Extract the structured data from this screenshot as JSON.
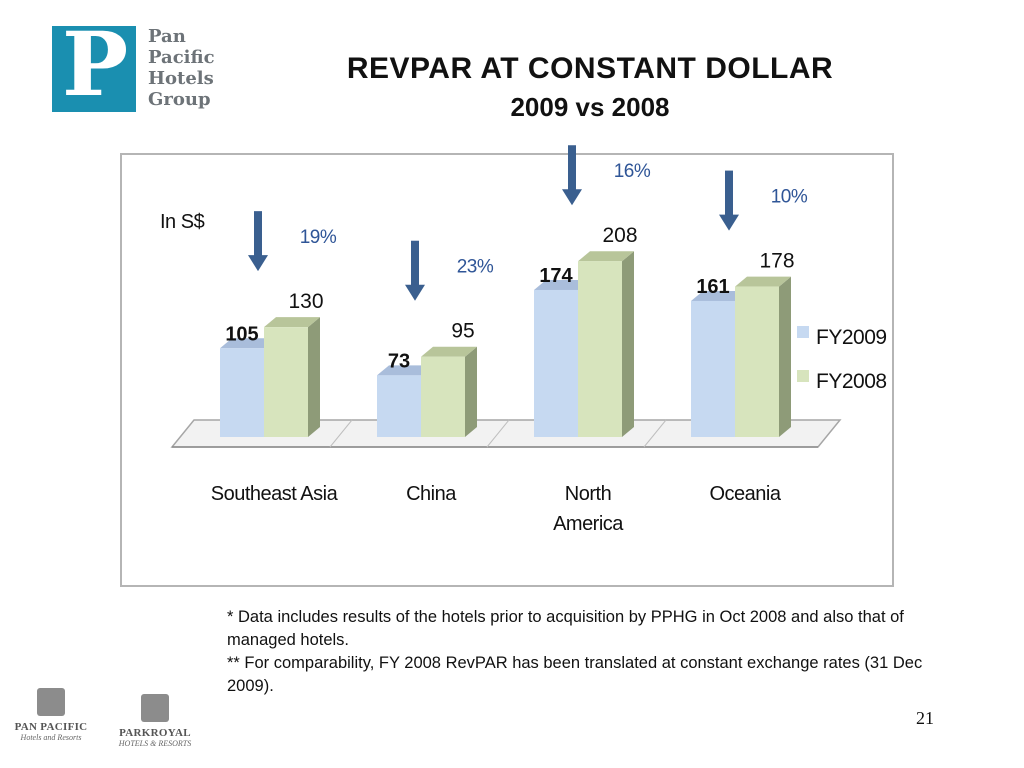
{
  "logo": {
    "letter": "P",
    "lines": [
      "Pan",
      "Pacific",
      "Hotels",
      "Group"
    ]
  },
  "title": {
    "line1": "REVPAR AT CONSTANT DOLLAR",
    "line2": "2009 vs 2008"
  },
  "chart_data": {
    "type": "bar",
    "unit_label": "In S$",
    "categories": [
      "Southeast Asia",
      "China",
      "North America",
      "Oceania"
    ],
    "category_label_lines": [
      [
        "Southeast Asia"
      ],
      [
        "China"
      ],
      [
        "North",
        "America"
      ],
      [
        "Oceania"
      ]
    ],
    "series": [
      {
        "name": "FY2009",
        "values": [
          105,
          73,
          174,
          161
        ],
        "color": "#c6d9f1",
        "side": "#8fa9c9",
        "top": "#a9bddb"
      },
      {
        "name": "FY2008",
        "values": [
          130,
          95,
          208,
          178
        ],
        "color": "#d7e4bd",
        "side": "#8e9b78",
        "top": "#b8c59a"
      }
    ],
    "declines": [
      "19%",
      "23%",
      "16%",
      "10%"
    ],
    "ylim": [
      0,
      220
    ],
    "legend_position": "right",
    "grid": false
  },
  "colors": {
    "arrow": "#3a5f8f",
    "percent": "#2f5597",
    "frame": "#b5b5b5"
  },
  "notes": [
    "*   Data includes results of the hotels prior to acquisition by PPHG in Oct 2008 and also that of managed hotels.",
    "**  For comparability, FY 2008 RevPAR has been translated at constant exchange rates (31 Dec 2009)."
  ],
  "page_number": "21",
  "brands": [
    {
      "name": "PAN PACIFIC",
      "sub": "Hotels and Resorts",
      "icon": "pan-pacific-tower-icon"
    },
    {
      "name": "PARKROYAL",
      "sub": "HOTELS & RESORTS",
      "icon": "parkroyal-orchid-icon"
    }
  ]
}
